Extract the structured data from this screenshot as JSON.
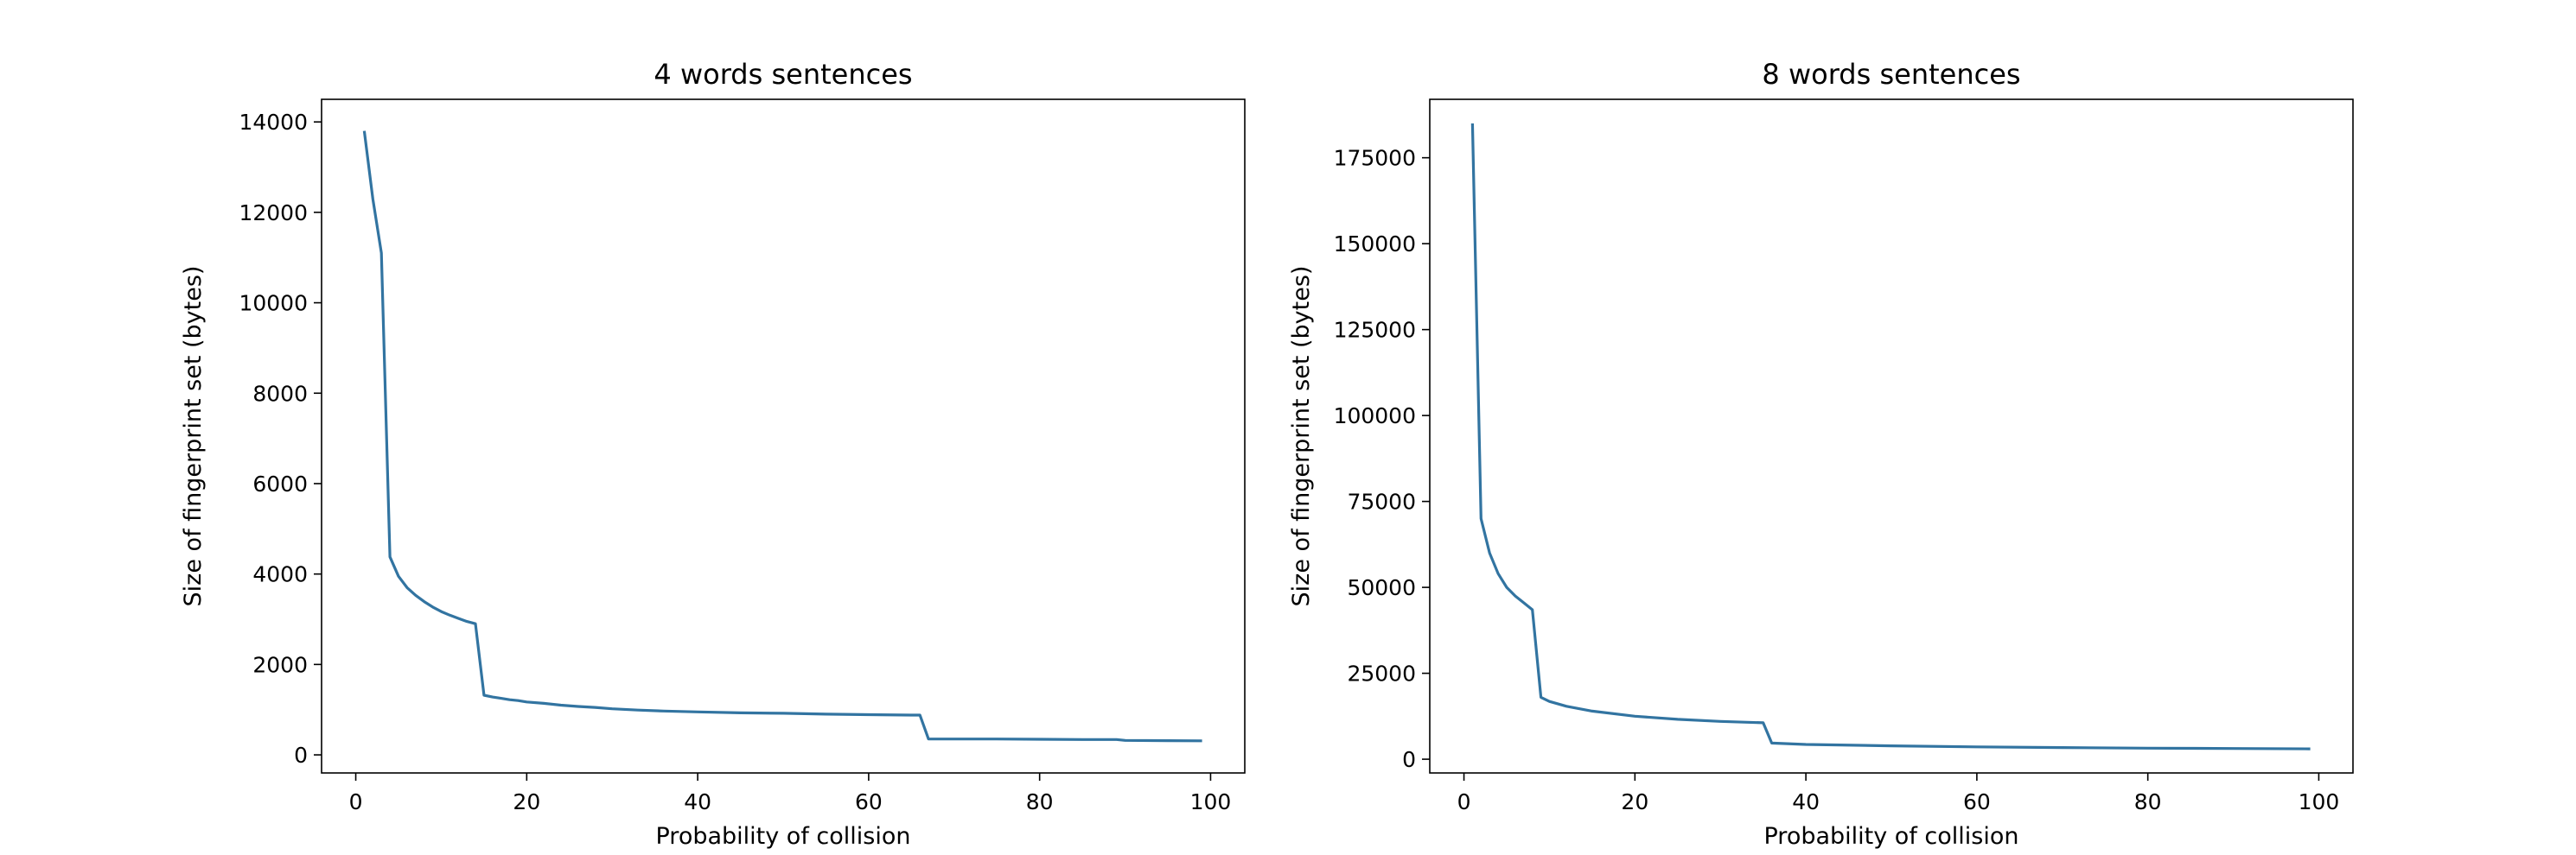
{
  "chart_data": [
    {
      "type": "line",
      "title": "4 words sentences",
      "xlabel": "Probability of collision",
      "ylabel": "Size of fingerprint set (bytes)",
      "xlim": [
        -4,
        104
      ],
      "ylim": [
        -400,
        14500
      ],
      "xticks": [
        0,
        20,
        40,
        60,
        80,
        100
      ],
      "yticks": [
        0,
        2000,
        4000,
        6000,
        8000,
        10000,
        12000,
        14000
      ],
      "grid": false,
      "color": "#3274a1",
      "series": [
        {
          "x": [
            1,
            2,
            3,
            4,
            5,
            6,
            7,
            8,
            9,
            10,
            11,
            12,
            13,
            14,
            15,
            16,
            17,
            18,
            19,
            20,
            22,
            24,
            26,
            28,
            30,
            33,
            36,
            40,
            45,
            50,
            55,
            60,
            65,
            66,
            67,
            70,
            75,
            80,
            85,
            89,
            90,
            95,
            99
          ],
          "y": [
            13800,
            12300,
            11100,
            4380,
            3950,
            3700,
            3530,
            3390,
            3270,
            3170,
            3090,
            3020,
            2950,
            2900,
            1320,
            1280,
            1250,
            1220,
            1200,
            1170,
            1140,
            1100,
            1070,
            1050,
            1020,
            990,
            970,
            950,
            930,
            920,
            900,
            890,
            880,
            880,
            350,
            350,
            350,
            345,
            340,
            340,
            320,
            315,
            310
          ]
        }
      ]
    },
    {
      "type": "line",
      "title": "8 words sentences",
      "xlabel": "Probability of collision",
      "ylabel": "Size of fingerprint set (bytes)",
      "xlim": [
        -4,
        104
      ],
      "ylim": [
        -4000,
        192000
      ],
      "xticks": [
        0,
        20,
        40,
        60,
        80,
        100
      ],
      "yticks": [
        0,
        25000,
        50000,
        75000,
        100000,
        125000,
        150000,
        175000
      ],
      "grid": false,
      "color": "#3274a1",
      "series": [
        {
          "x": [
            1,
            2,
            3,
            4,
            5,
            6,
            7,
            8,
            9,
            10,
            12,
            15,
            20,
            25,
            30,
            35,
            36,
            40,
            50,
            60,
            70,
            80,
            90,
            99
          ],
          "y": [
            185000,
            70000,
            60000,
            54000,
            50000,
            47500,
            45500,
            43500,
            18000,
            16800,
            15400,
            14000,
            12500,
            11600,
            11000,
            10600,
            4700,
            4300,
            3900,
            3600,
            3400,
            3200,
            3100,
            3000
          ]
        }
      ]
    }
  ]
}
